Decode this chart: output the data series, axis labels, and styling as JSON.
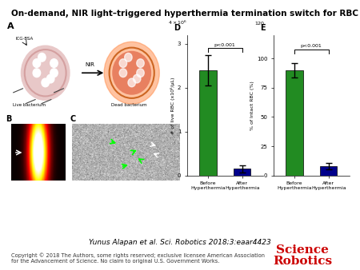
{
  "title": "On-demand, NIR light–triggered hyperthermia termination switch for RBC microswimmers.",
  "citation": "Yunus Alapan et al. Sci. Robotics 2018;3:eaar4423",
  "copyright": "Copyright © 2018 The Authors, some rights reserved; exclusive licensee American Association\nfor the Advancement of Science. No claim to original U.S. Government Works.",
  "journal": "Science",
  "journal2": "Robotics",
  "bg_color": "#ffffff",
  "title_fontsize": 7.5,
  "citation_fontsize": 6.5,
  "copyright_fontsize": 4.8,
  "journal_fontsize": 9,
  "panel_A_label": "A",
  "panel_B_label": "B",
  "panel_C_label": "C",
  "panel_D_label": "D",
  "panel_E_label": "E",
  "bar_D_before_color": "#228B22",
  "bar_D_after_color": "#00008B",
  "bar_E_before_color": "#228B22",
  "bar_E_after_color": "#00008B",
  "bar_D_before_value": 2.4,
  "bar_D_after_value": 0.15,
  "bar_E_before_value": 90,
  "bar_E_after_value": 8,
  "D_ylabel": "# of live RBC (x10⁶/μL)",
  "E_ylabel": "% of Intact RBC (%)",
  "D_ylim": [
    0,
    3.2
  ],
  "E_ylim": [
    0,
    120
  ],
  "D_yticks": [
    0,
    1.0,
    2.0,
    3.0
  ],
  "E_yticks": [
    0,
    25,
    50,
    75,
    100
  ],
  "xlabel_before": "Before\nHyperthermia",
  "xlabel_after": "After\nHyperthermia",
  "significance_text": "p<0.001",
  "NIR_label": "NIR",
  "ICG_BSA_label": "ICG-BSA",
  "live_label": "Live bacterium",
  "dead_label": "Dead bacterium",
  "heatmap_colormap": "hot",
  "arrow_color": "#ffffff"
}
